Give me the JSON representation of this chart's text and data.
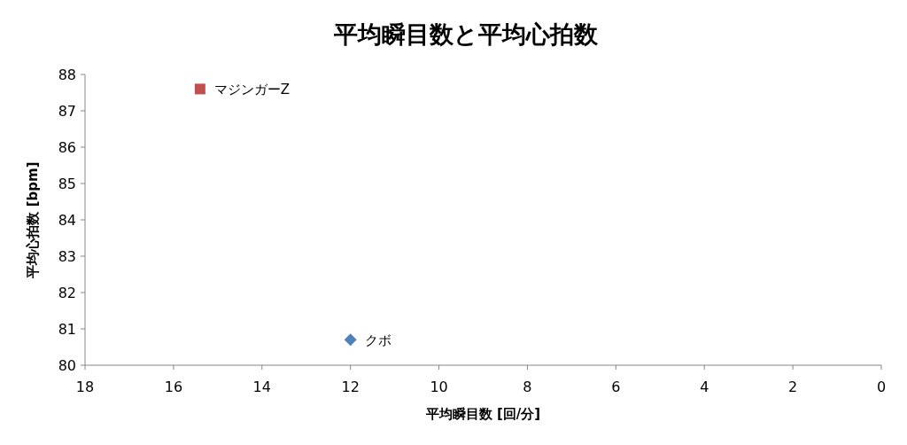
{
  "chart_data": {
    "type": "scatter",
    "title": "平均瞬目数と平均心拍数",
    "xlabel": "平均瞬目数 [回/分]",
    "ylabel": "平均心拍数 [bpm]",
    "xlim": [
      18,
      0
    ],
    "ylim": [
      80,
      88
    ],
    "xticks": [
      18,
      16,
      14,
      12,
      10,
      8,
      6,
      4,
      2,
      0
    ],
    "yticks": [
      80,
      81,
      82,
      83,
      84,
      85,
      86,
      87,
      88
    ],
    "grid": false,
    "series": [
      {
        "name": "クボ",
        "color": "#4f81bd",
        "marker": "diamond",
        "x": [
          12.0
        ],
        "values": [
          80.7
        ]
      },
      {
        "name": "マジンガーZ",
        "color": "#c0504d",
        "marker": "square",
        "x": [
          15.4
        ],
        "values": [
          87.6
        ]
      }
    ]
  }
}
